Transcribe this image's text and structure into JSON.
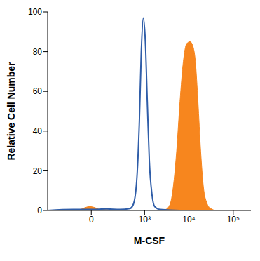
{
  "chart_data": {
    "type": "line",
    "xlabel": "M-CSF",
    "ylabel": "Relative Cell Number",
    "xlim": [
      -600,
      250000
    ],
    "xticks": [
      {
        "value": 0,
        "label": "0"
      },
      {
        "value": 1000,
        "label": "10³"
      },
      {
        "value": 10000,
        "label": "10⁴"
      },
      {
        "value": 100000,
        "label": "10⁵"
      }
    ],
    "ylim": [
      0,
      100
    ],
    "yticks": [
      0,
      20,
      40,
      60,
      80,
      100
    ],
    "grid": false,
    "series": [
      {
        "type": "area",
        "color": "#f7861e",
        "x": [
          -600,
          -79,
          -40,
          -9,
          22,
          59,
          178,
          1575,
          2940,
          3740,
          4450,
          5300,
          6300,
          7490,
          8900,
          10600,
          12200,
          14000,
          16000,
          18400,
          21200,
          25200,
          31000,
          42300,
          250000
        ],
        "values": [
          0,
          0.5,
          1.5,
          2,
          1.5,
          0.5,
          0.3,
          0,
          0.5,
          3,
          12,
          30,
          55,
          75,
          84,
          85,
          83,
          75,
          55,
          30,
          12,
          4,
          1,
          0,
          0
        ]
      },
      {
        "type": "line",
        "color": "#2f5da8",
        "x": [
          -600,
          -136,
          0,
          111,
          265,
          460,
          550,
          660,
          760,
          840,
          935,
          1040,
          1150,
          1280,
          1470,
          1690,
          2230,
          6300,
          25000,
          250000
        ],
        "values": [
          0,
          0.5,
          0.5,
          0.8,
          0.5,
          1,
          3,
          15,
          45,
          80,
          97,
          85,
          55,
          25,
          8,
          2,
          0.5,
          0,
          0,
          0
        ]
      }
    ]
  }
}
